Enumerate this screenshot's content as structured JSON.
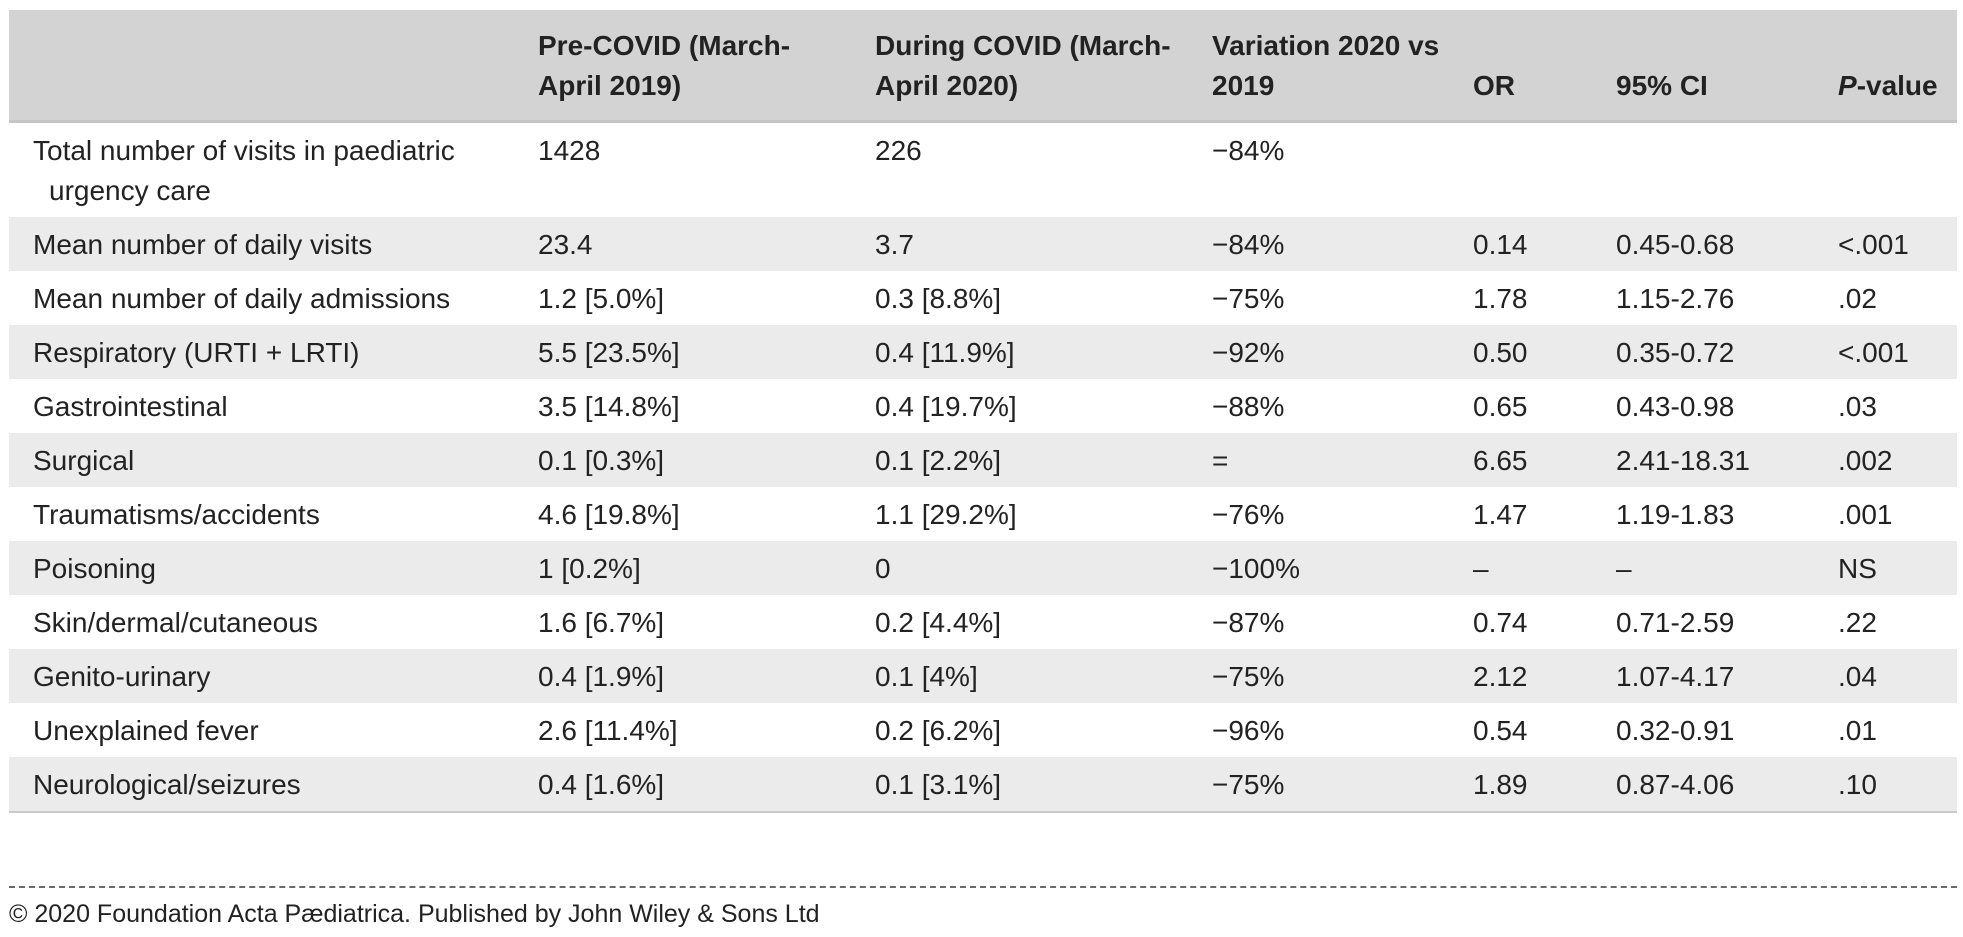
{
  "table": {
    "headers": [
      "",
      "Pre-COVID (March-April 2019)",
      "During COVID (March-April 2020)",
      "Variation 2020 vs 2019",
      "OR",
      "95% CI",
      "P-value"
    ],
    "header_pvalue": {
      "italic_part": "P",
      "rest": "-value"
    },
    "rows": [
      [
        "Total number of visits in paediatric urgency care",
        "1428",
        "226",
        "−84%",
        "",
        "",
        ""
      ],
      [
        "Mean number of daily visits",
        "23.4",
        "3.7",
        "−84%",
        "0.14",
        "0.45-0.68",
        "<.001"
      ],
      [
        "Mean number of daily admissions",
        "1.2 [5.0%]",
        "0.3 [8.8%]",
        "−75%",
        "1.78",
        "1.15-2.76",
        ".02"
      ],
      [
        "Respiratory (URTI + LRTI)",
        "5.5 [23.5%]",
        "0.4 [11.9%]",
        "−92%",
        "0.50",
        "0.35-0.72",
        "<.001"
      ],
      [
        "Gastrointestinal",
        "3.5 [14.8%]",
        "0.4 [19.7%]",
        "−88%",
        "0.65",
        "0.43-0.98",
        ".03"
      ],
      [
        "Surgical",
        "0.1 [0.3%]",
        "0.1 [2.2%]",
        "=",
        "6.65",
        "2.41-18.31",
        ".002"
      ],
      [
        "Traumatisms/accidents",
        "4.6 [19.8%]",
        "1.1 [29.2%]",
        "−76%",
        "1.47",
        "1.19-1.83",
        ".001"
      ],
      [
        "Poisoning",
        "1 [0.2%]",
        "0",
        "−100%",
        "–",
        "–",
        "NS"
      ],
      [
        "Skin/dermal/cutaneous",
        "1.6 [6.7%]",
        "0.2 [4.4%]",
        "−87%",
        "0.74",
        "0.71-2.59",
        ".22"
      ],
      [
        "Genito-urinary",
        "0.4 [1.9%]",
        "0.1 [4%]",
        "−75%",
        "2.12",
        "1.07-4.17",
        ".04"
      ],
      [
        "Unexplained fever",
        "2.6 [11.4%]",
        "0.2 [6.2%]",
        "−96%",
        "0.54",
        "0.32-0.91",
        ".01"
      ],
      [
        "Neurological/seizures",
        "0.4 [1.6%]",
        "0.1 [3.1%]",
        "−75%",
        "1.89",
        "0.87-4.06",
        ".10"
      ]
    ],
    "shaded_rows": [
      1,
      3,
      5,
      7,
      9,
      11
    ]
  },
  "footer": {
    "copyright": "© 2020 Foundation Acta Pædiatrica. Published by John Wiley & Sons Ltd"
  },
  "colors": {
    "header_bg": "#d3d3d3",
    "stripe_bg": "#ebebeb",
    "text": "#222222"
  }
}
